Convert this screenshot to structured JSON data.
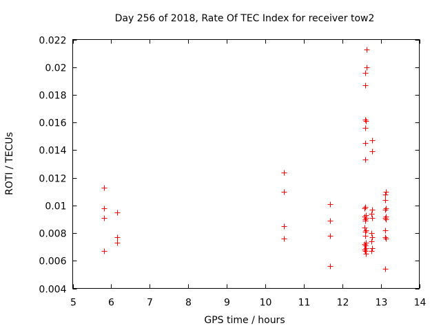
{
  "chart_data": {
    "type": "scatter",
    "title": "Day 256 of 2018, Rate Of TEC Index for receiver tow2",
    "xlabel": "GPS time / hours",
    "ylabel": "ROTI / TECUs",
    "xlim": [
      5,
      14
    ],
    "ylim": [
      0.004,
      0.022
    ],
    "xticks": [
      5,
      6,
      7,
      8,
      9,
      10,
      11,
      12,
      13,
      14
    ],
    "xtick_labels": [
      "5",
      "6",
      "7",
      "8",
      "9",
      "10",
      "11",
      "12",
      "13",
      "14"
    ],
    "yticks": [
      0.004,
      0.006,
      0.008,
      0.01,
      0.012,
      0.014,
      0.016,
      0.018,
      0.02,
      0.022
    ],
    "ytick_labels": [
      "0.004",
      "0.006",
      "0.008",
      "0.01",
      "0.012",
      "0.014",
      "0.016",
      "0.018",
      "0.02",
      "0.022"
    ],
    "marker": "+",
    "marker_color": "#ff0000",
    "grid": false,
    "series": [
      {
        "name": "ROTI",
        "points": [
          [
            5.82,
            0.0113
          ],
          [
            5.82,
            0.0098
          ],
          [
            5.82,
            0.0091
          ],
          [
            5.82,
            0.0067
          ],
          [
            6.15,
            0.0095
          ],
          [
            6.15,
            0.0077
          ],
          [
            6.15,
            0.0073
          ],
          [
            10.48,
            0.0124
          ],
          [
            10.48,
            0.011
          ],
          [
            10.48,
            0.0085
          ],
          [
            10.48,
            0.0076
          ],
          [
            11.68,
            0.0101
          ],
          [
            11.68,
            0.0089
          ],
          [
            11.68,
            0.0078
          ],
          [
            11.68,
            0.0056
          ],
          [
            12.63,
            0.0213
          ],
          [
            12.63,
            0.02
          ],
          [
            12.6,
            0.0196
          ],
          [
            12.6,
            0.0187
          ],
          [
            12.6,
            0.0162
          ],
          [
            12.62,
            0.0161
          ],
          [
            12.6,
            0.0156
          ],
          [
            12.6,
            0.0145
          ],
          [
            12.6,
            0.0133
          ],
          [
            12.6,
            0.0099
          ],
          [
            12.58,
            0.0098
          ],
          [
            12.62,
            0.0093
          ],
          [
            12.58,
            0.0092
          ],
          [
            12.62,
            0.0091
          ],
          [
            12.6,
            0.009
          ],
          [
            12.6,
            0.0089
          ],
          [
            12.58,
            0.0084
          ],
          [
            12.62,
            0.0082
          ],
          [
            12.6,
            0.0081
          ],
          [
            12.6,
            0.0078
          ],
          [
            12.62,
            0.0073
          ],
          [
            12.58,
            0.0072
          ],
          [
            12.6,
            0.0071
          ],
          [
            12.62,
            0.0069
          ],
          [
            12.58,
            0.0068
          ],
          [
            12.6,
            0.0067
          ],
          [
            12.62,
            0.0065
          ],
          [
            12.78,
            0.0147
          ],
          [
            12.78,
            0.0139
          ],
          [
            12.78,
            0.0097
          ],
          [
            12.76,
            0.0094
          ],
          [
            12.78,
            0.0091
          ],
          [
            12.76,
            0.008
          ],
          [
            12.78,
            0.0077
          ],
          [
            12.76,
            0.0074
          ],
          [
            12.78,
            0.0069
          ],
          [
            12.76,
            0.0067
          ],
          [
            13.13,
            0.011
          ],
          [
            13.12,
            0.0108
          ],
          [
            13.12,
            0.0104
          ],
          [
            13.13,
            0.0098
          ],
          [
            13.12,
            0.0097
          ],
          [
            13.13,
            0.0092
          ],
          [
            13.12,
            0.0091
          ],
          [
            13.13,
            0.009
          ],
          [
            13.12,
            0.0082
          ],
          [
            13.12,
            0.0077
          ],
          [
            13.14,
            0.0076
          ],
          [
            13.12,
            0.0054
          ]
        ]
      }
    ]
  }
}
